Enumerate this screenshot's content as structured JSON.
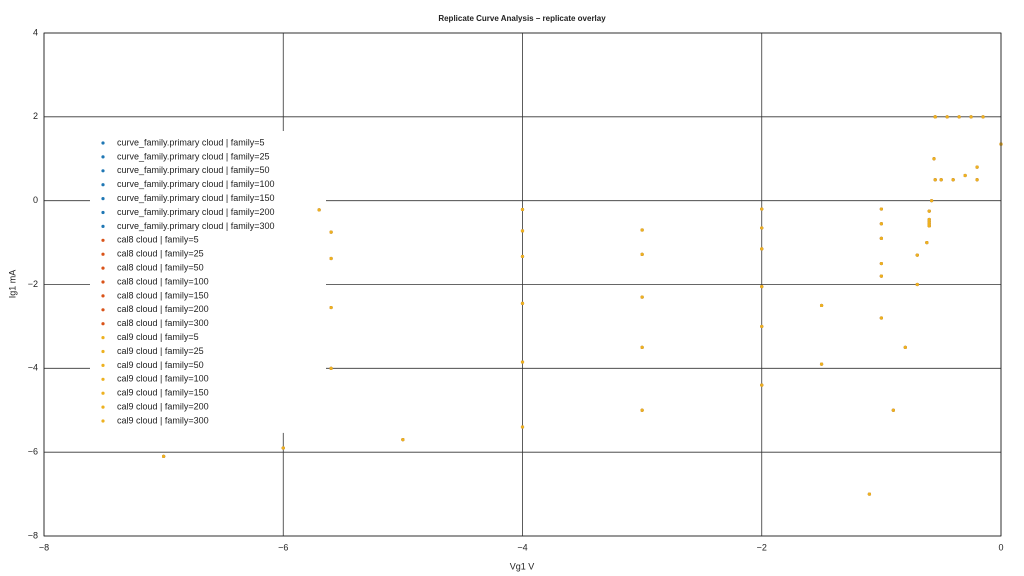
{
  "chart_data": {
    "type": "scatter",
    "title": "Replicate Curve Analysis – replicate overlay",
    "x_label": "Vg1 V",
    "y_label": "Ig1 mA",
    "xlim": [
      -8,
      0
    ],
    "ylim": [
      -8,
      4
    ],
    "xticks": [
      {
        "value": -8,
        "label": "−8"
      },
      {
        "value": -6,
        "label": "−6"
      },
      {
        "value": -4,
        "label": "−4"
      },
      {
        "value": -2,
        "label": "−2"
      },
      0
    ],
    "yticks": [
      {
        "value": -8,
        "label": "−8"
      },
      {
        "value": -6,
        "label": "−6"
      },
      {
        "value": -4,
        "label": "−4"
      },
      {
        "value": -2,
        "label": "−2"
      },
      0,
      2,
      4
    ],
    "grid": true,
    "legend": "upper left",
    "series": [
      {
        "name": "curve_family.primary cloud | family=5",
        "color": "#1f77b4",
        "x": [
          -7,
          -6,
          -5,
          -4,
          -3,
          -2,
          -1.5,
          -1,
          -0.7,
          -0.6,
          -0.55,
          -0.55
        ],
        "values": [
          -6.1,
          -5.9,
          -5.7,
          -5.4,
          -5.0,
          -4.4,
          -3.9,
          -2.8,
          -1.3,
          -0.5,
          0.5,
          2.0
        ]
      },
      {
        "name": "curve_family.primary cloud | family=25",
        "color": "#1f77b4",
        "x": [
          -5.6,
          -4,
          -3,
          -2,
          -1.5,
          -1,
          -0.6,
          -0.5,
          -0.45
        ],
        "values": [
          -4.0,
          -3.85,
          -3.5,
          -3.0,
          -2.5,
          -1.8,
          -0.6,
          0.5,
          2.0
        ]
      },
      {
        "name": "curve_family.primary cloud | family=50",
        "color": "#1f77b4",
        "x": [
          -5.6,
          -4,
          -3,
          -2,
          -1,
          -0.6,
          -0.4,
          -0.35
        ],
        "values": [
          -2.55,
          -2.45,
          -2.3,
          -2.05,
          -1.5,
          -0.6,
          0.5,
          2.0
        ]
      },
      {
        "name": "curve_family.primary cloud | family=100",
        "color": "#1f77b4",
        "x": [
          -5.6,
          -4,
          -3,
          -2,
          -1,
          -0.6,
          -0.3,
          -0.25
        ],
        "values": [
          -1.38,
          -1.33,
          -1.28,
          -1.15,
          -0.9,
          -0.55,
          0.6,
          2.0
        ]
      },
      {
        "name": "curve_family.primary cloud | family=150",
        "color": "#1f77b4",
        "x": [
          -5.6,
          -4,
          -3,
          -2,
          -1,
          -0.6,
          -0.2,
          -0.15
        ],
        "values": [
          -0.75,
          -0.72,
          -0.7,
          -0.65,
          -0.55,
          -0.45,
          0.8,
          2.0
        ]
      },
      {
        "name": "curve_family.primary cloud | family=200",
        "color": "#1f77b4",
        "x": [
          -5.7,
          -4,
          -2,
          -1,
          -0.6,
          -0.2,
          0
        ],
        "values": [
          -0.22,
          -0.21,
          -0.2,
          -0.2,
          -0.25,
          0.5,
          1.35
        ]
      },
      {
        "name": "curve_family.primary cloud | family=300",
        "color": "#1f77b4",
        "x": [
          -1.1,
          -0.9,
          -0.8,
          -0.7,
          -0.62,
          -0.58,
          -0.56,
          -0.55
        ],
        "values": [
          -7.0,
          -5.0,
          -3.5,
          -2.0,
          -1.0,
          0,
          1.0,
          2.0
        ]
      },
      {
        "name": "cal8 cloud | family=5",
        "color": "#d95319",
        "x": [
          -7,
          -6,
          -5,
          -4,
          -3,
          -2,
          -1.5,
          -1,
          -0.7,
          -0.6,
          -0.55,
          -0.55
        ],
        "values": [
          -6.1,
          -5.9,
          -5.7,
          -5.4,
          -5.0,
          -4.4,
          -3.9,
          -2.8,
          -1.3,
          -0.5,
          0.5,
          2.0
        ]
      },
      {
        "name": "cal8 cloud | family=25",
        "color": "#d95319",
        "x": [
          -5.6,
          -4,
          -3,
          -2,
          -1.5,
          -1,
          -0.6,
          -0.5,
          -0.45
        ],
        "values": [
          -4.0,
          -3.85,
          -3.5,
          -3.0,
          -2.5,
          -1.8,
          -0.6,
          0.5,
          2.0
        ]
      },
      {
        "name": "cal8 cloud | family=50",
        "color": "#d95319",
        "x": [
          -5.6,
          -4,
          -3,
          -2,
          -1,
          -0.6,
          -0.4,
          -0.35
        ],
        "values": [
          -2.55,
          -2.45,
          -2.3,
          -2.05,
          -1.5,
          -0.6,
          0.5,
          2.0
        ]
      },
      {
        "name": "cal8 cloud | family=100",
        "color": "#d95319",
        "x": [
          -5.6,
          -4,
          -3,
          -2,
          -1,
          -0.6,
          -0.3,
          -0.25
        ],
        "values": [
          -1.38,
          -1.33,
          -1.28,
          -1.15,
          -0.9,
          -0.55,
          0.6,
          2.0
        ]
      },
      {
        "name": "cal8 cloud | family=150",
        "color": "#d95319",
        "x": [
          -5.6,
          -4,
          -3,
          -2,
          -1,
          -0.6,
          -0.2,
          -0.15
        ],
        "values": [
          -0.75,
          -0.72,
          -0.7,
          -0.65,
          -0.55,
          -0.45,
          0.8,
          2.0
        ]
      },
      {
        "name": "cal8 cloud | family=200",
        "color": "#d95319",
        "x": [
          -5.7,
          -4,
          -2,
          -1,
          -0.6,
          -0.2,
          0
        ],
        "values": [
          -0.22,
          -0.21,
          -0.2,
          -0.2,
          -0.25,
          0.5,
          1.35
        ]
      },
      {
        "name": "cal8 cloud | family=300",
        "color": "#d95319",
        "x": [
          -1.1,
          -0.9,
          -0.8,
          -0.7,
          -0.62,
          -0.58,
          -0.56,
          -0.55
        ],
        "values": [
          -7.0,
          -5.0,
          -3.5,
          -2.0,
          -1.0,
          0,
          1.0,
          2.0
        ]
      },
      {
        "name": "cal9 cloud | family=5",
        "color": "#edb120",
        "x": [
          -7,
          -6,
          -5,
          -4,
          -3,
          -2,
          -1.5,
          -1,
          -0.7,
          -0.6,
          -0.55,
          -0.55
        ],
        "values": [
          -6.1,
          -5.9,
          -5.7,
          -5.4,
          -5.0,
          -4.4,
          -3.9,
          -2.8,
          -1.3,
          -0.5,
          0.5,
          2.0
        ]
      },
      {
        "name": "cal9 cloud | family=25",
        "color": "#edb120",
        "x": [
          -5.6,
          -4,
          -3,
          -2,
          -1.5,
          -1,
          -0.6,
          -0.5,
          -0.45
        ],
        "values": [
          -4.0,
          -3.85,
          -3.5,
          -3.0,
          -2.5,
          -1.8,
          -0.6,
          0.5,
          2.0
        ]
      },
      {
        "name": "cal9 cloud | family=50",
        "color": "#edb120",
        "x": [
          -5.6,
          -4,
          -3,
          -2,
          -1,
          -0.6,
          -0.4,
          -0.35
        ],
        "values": [
          -2.55,
          -2.45,
          -2.3,
          -2.05,
          -1.5,
          -0.6,
          0.5,
          2.0
        ]
      },
      {
        "name": "cal9 cloud | family=100",
        "color": "#edb120",
        "x": [
          -5.6,
          -4,
          -3,
          -2,
          -1,
          -0.6,
          -0.3,
          -0.25
        ],
        "values": [
          -1.38,
          -1.33,
          -1.28,
          -1.15,
          -0.9,
          -0.55,
          0.6,
          2.0
        ]
      },
      {
        "name": "cal9 cloud | family=150",
        "color": "#edb120",
        "x": [
          -5.6,
          -4,
          -3,
          -2,
          -1,
          -0.6,
          -0.2,
          -0.15
        ],
        "values": [
          -0.75,
          -0.72,
          -0.7,
          -0.65,
          -0.55,
          -0.45,
          0.8,
          2.0
        ]
      },
      {
        "name": "cal9 cloud | family=200",
        "color": "#edb120",
        "x": [
          -5.7,
          -4,
          -2,
          -1,
          -0.6,
          -0.2,
          0
        ],
        "values": [
          -0.22,
          -0.21,
          -0.2,
          -0.2,
          -0.25,
          0.5,
          1.35
        ]
      },
      {
        "name": "cal9 cloud | family=300",
        "color": "#edb120",
        "x": [
          -1.1,
          -0.9,
          -0.8,
          -0.7,
          -0.62,
          -0.58,
          -0.56,
          -0.55
        ],
        "values": [
          -7.0,
          -5.0,
          -3.5,
          -2.0,
          -1.0,
          0,
          1.0,
          2.0
        ]
      }
    ]
  }
}
